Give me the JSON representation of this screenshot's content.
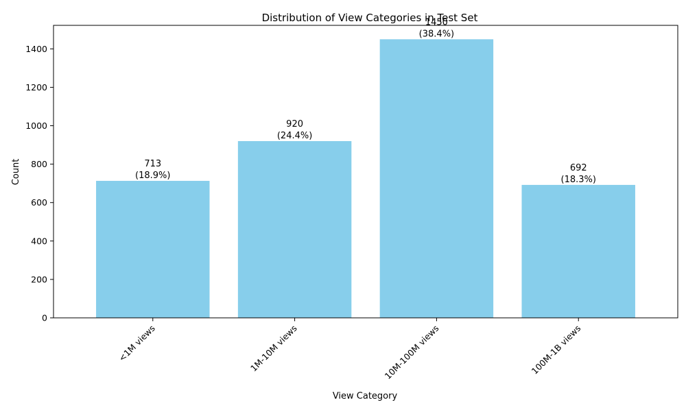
{
  "chart_data": {
    "type": "bar",
    "title": "Distribution of View Categories in Test Set",
    "xlabel": "View Category",
    "ylabel": "Count",
    "categories": [
      "<1M views",
      "1M-10M views",
      "10M-100M views",
      "100M-1B views"
    ],
    "values": [
      713,
      920,
      1450,
      692
    ],
    "value_labels": [
      "713",
      "920",
      "1450",
      "692"
    ],
    "percent_labels": [
      "(18.9%)",
      "(24.4%)",
      "(38.4%)",
      "(18.3%)"
    ],
    "ylim": [
      0,
      1522.5
    ],
    "yticks": [
      0,
      200,
      400,
      600,
      800,
      1000,
      1200,
      1400
    ],
    "ytick_labels": [
      "0",
      "200",
      "400",
      "600",
      "800",
      "1000",
      "1200",
      "1400"
    ],
    "bar_color": "#87ceeb",
    "grid": false,
    "xtick_rotation_deg": 45
  }
}
